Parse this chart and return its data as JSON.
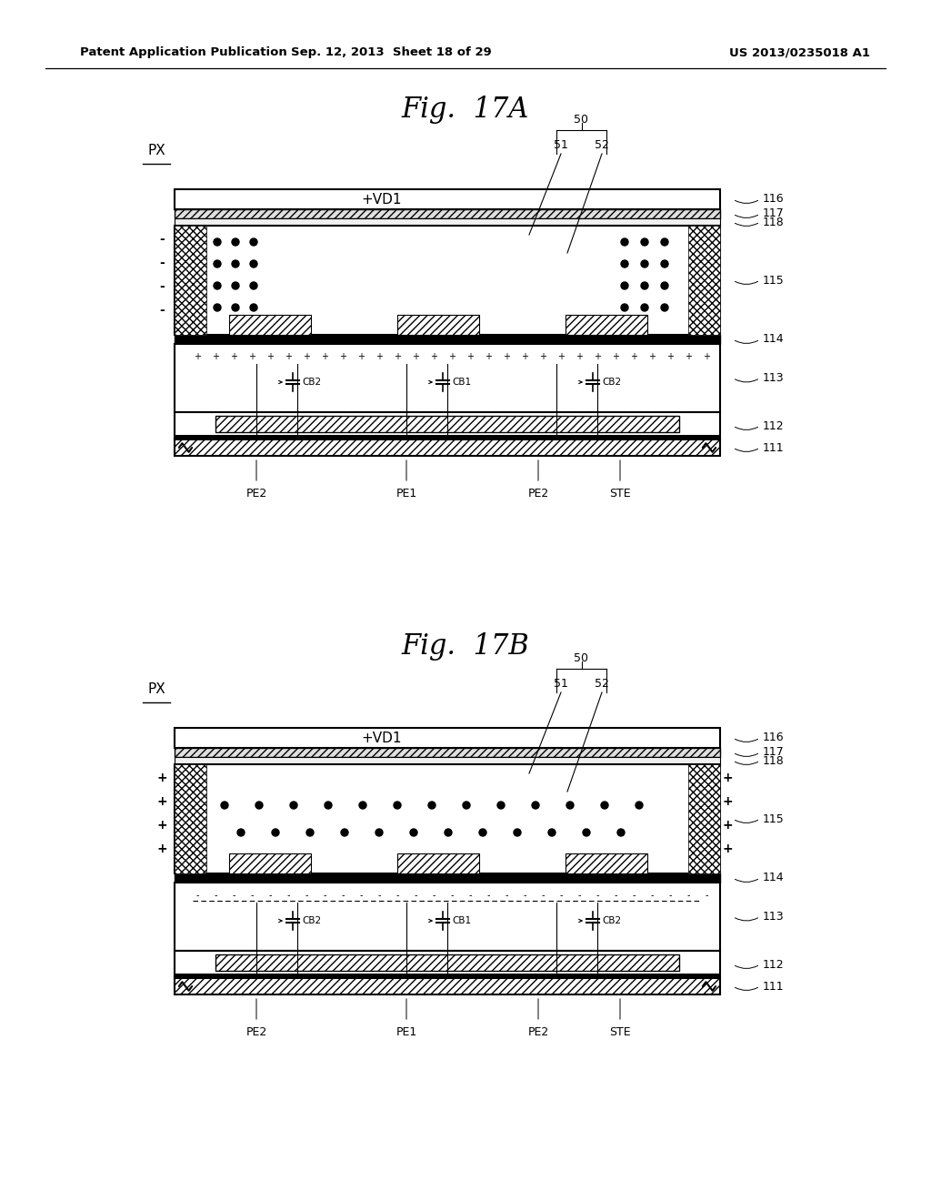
{
  "bg_color": "#ffffff",
  "header_left": "Patent Application Publication",
  "header_center": "Sep. 12, 2013  Sheet 18 of 29",
  "header_right": "US 2013/0235018 A1",
  "fig_17a_title": "Fig.  17A",
  "fig_17b_title": "Fig.  17B"
}
